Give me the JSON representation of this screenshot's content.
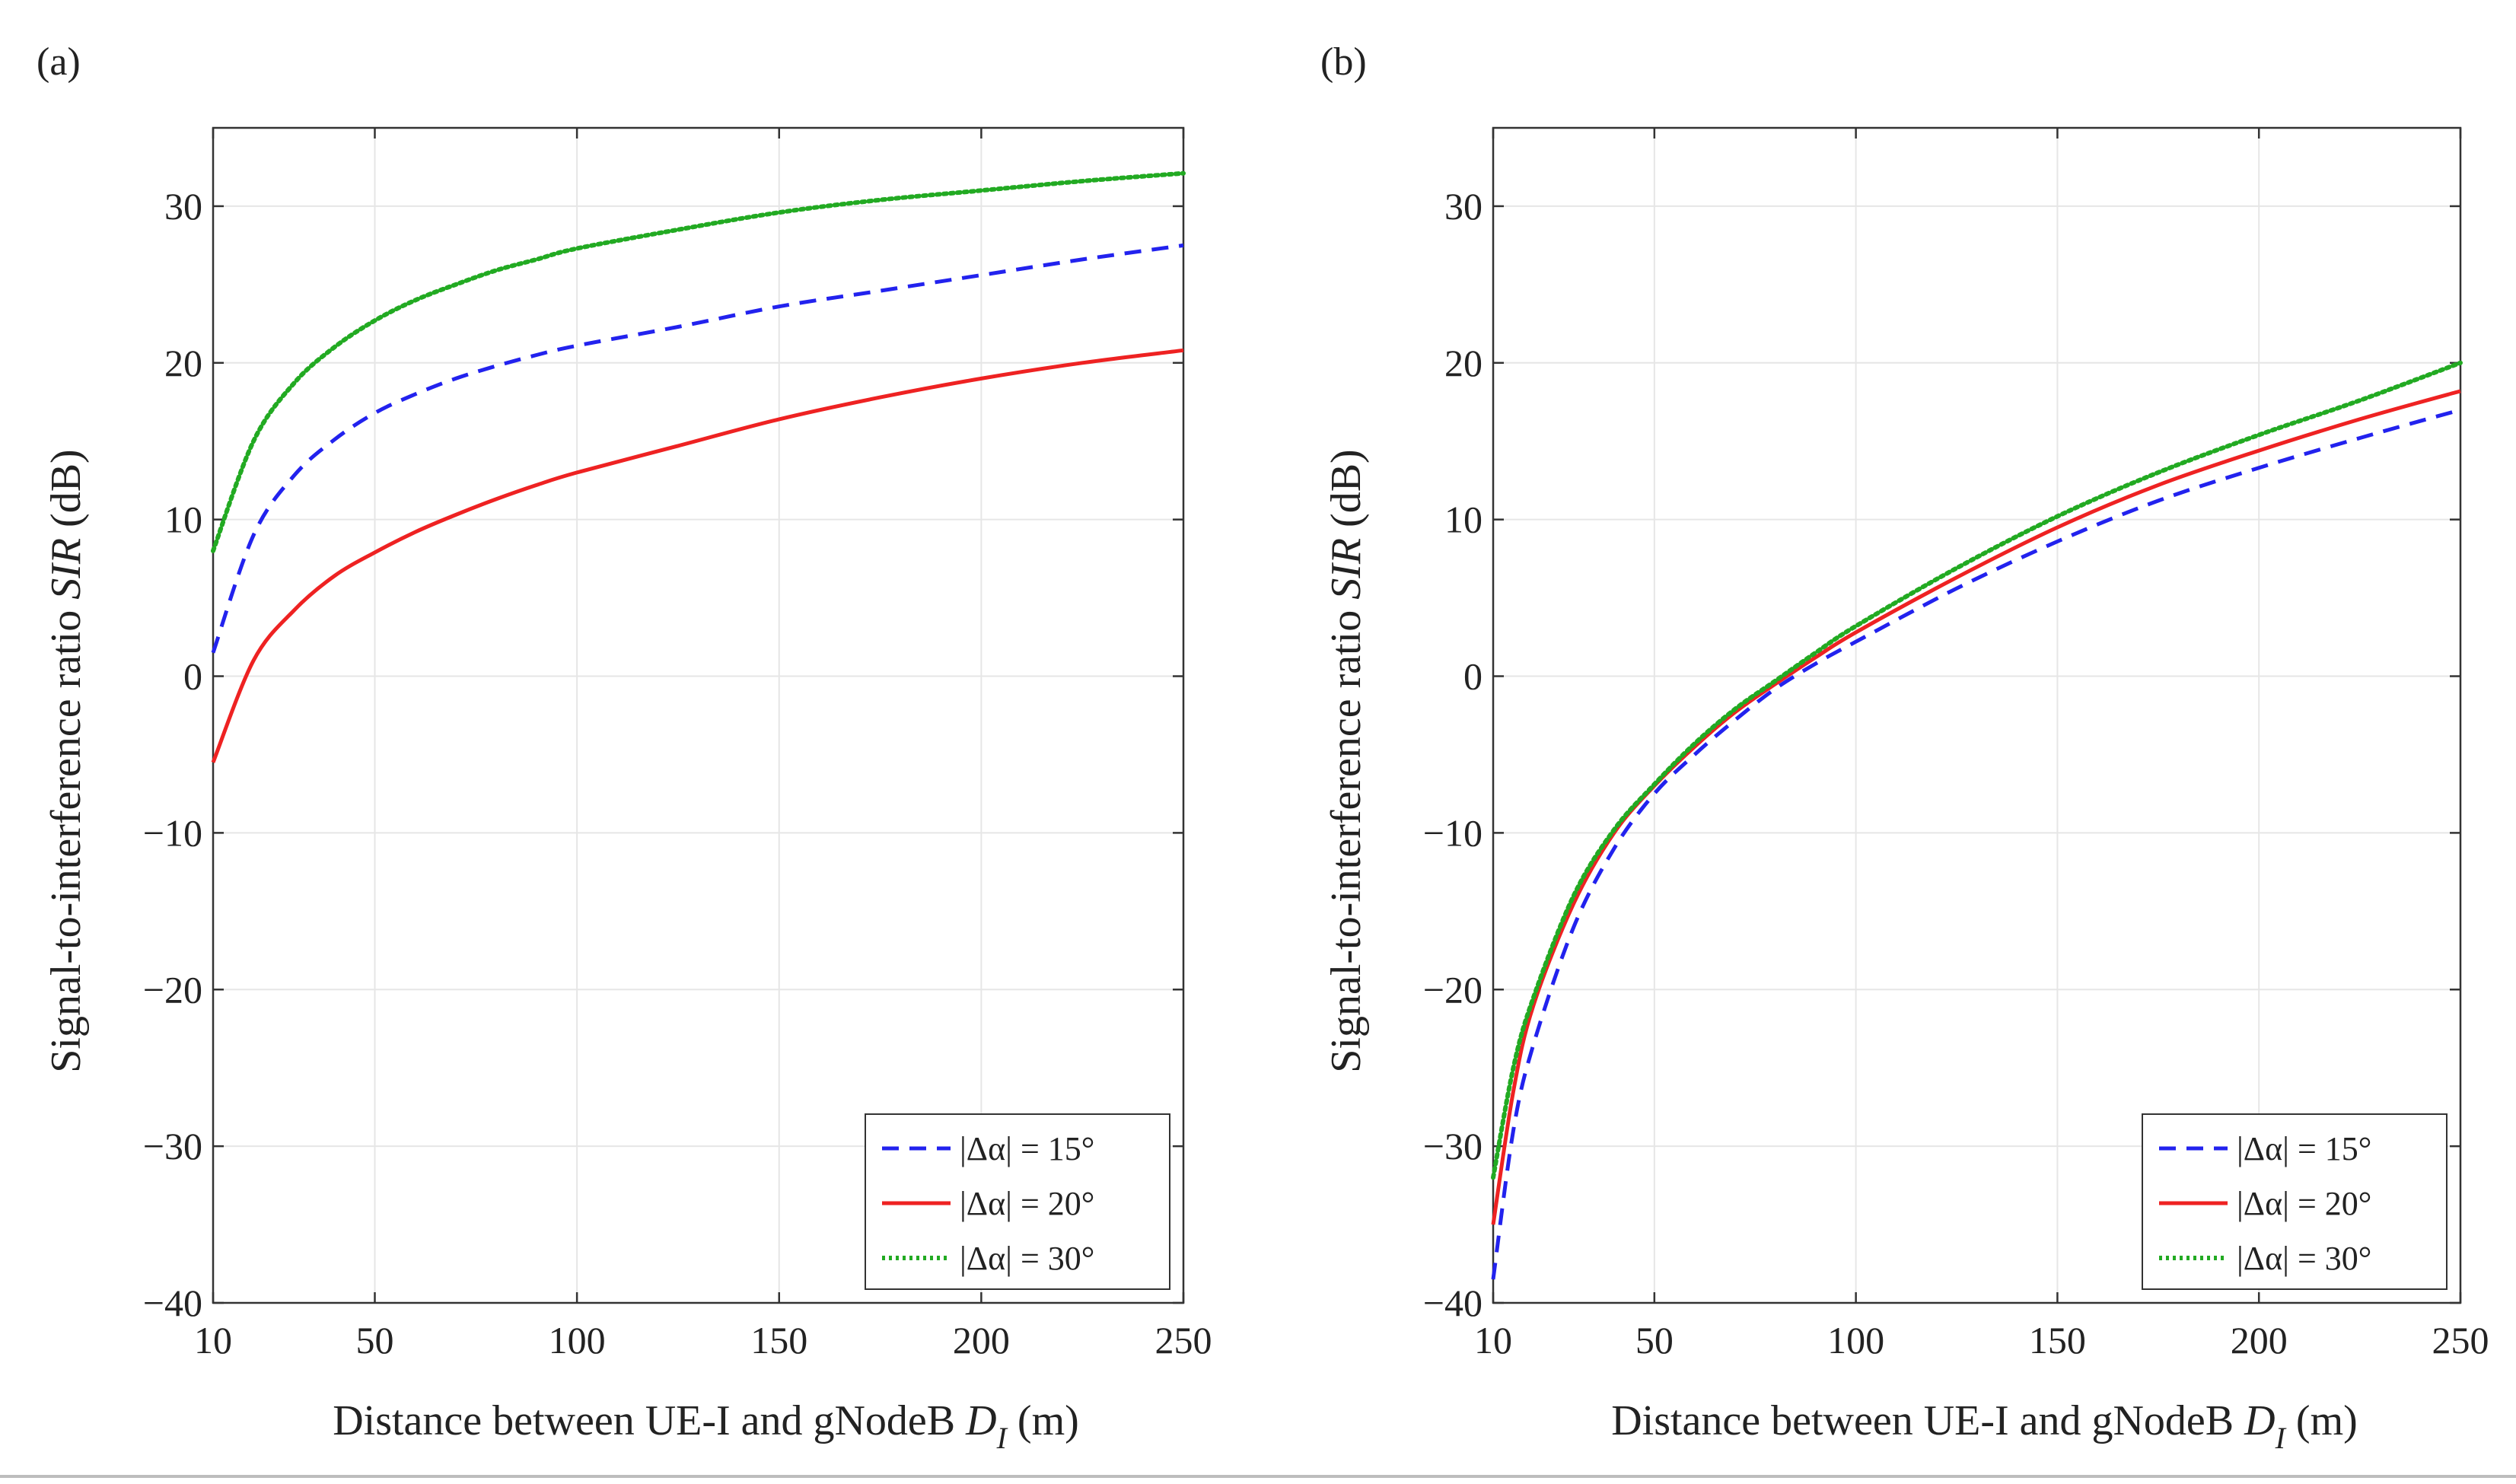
{
  "chart_data": [
    {
      "panel": "(a)",
      "type": "line",
      "xlabel": "Distance between UE-I and gNodeB",
      "xlabel_symbol": "D",
      "xlabel_subscript": "I",
      "xlabel_unit": "(m)",
      "ylabel": "Signal-to-interference ratio",
      "ylabel_symbol": "SIR",
      "ylabel_unit": "(dB)",
      "xlim": [
        10,
        250
      ],
      "ylim": [
        -40,
        35
      ],
      "xticks": [
        10,
        50,
        100,
        150,
        200,
        250
      ],
      "yticks": [
        -40,
        -30,
        -20,
        -10,
        0,
        10,
        20,
        30
      ],
      "ytick_labels": [
        "−40",
        "−30",
        "−20",
        "−10",
        "0",
        "10",
        "20",
        "30"
      ],
      "grid": true,
      "legend_position": "bottom-right",
      "x": [
        10,
        20,
        30,
        40,
        50,
        60,
        70,
        80,
        90,
        100,
        125,
        150,
        175,
        200,
        225,
        250
      ],
      "series": [
        {
          "name": "|Δα| = 15°",
          "style": "dashed",
          "color": "#2222ee",
          "values": [
            1.5,
            9.0,
            12.8,
            15.1,
            16.8,
            18.0,
            19.0,
            19.8,
            20.5,
            21.1,
            22.3,
            23.6,
            24.6,
            25.6,
            26.6,
            27.5
          ]
        },
        {
          "name": "|Δα| = 20°",
          "style": "solid",
          "color": "#ee2222",
          "values": [
            -5.5,
            1.0,
            4.2,
            6.4,
            7.9,
            9.2,
            10.3,
            11.3,
            12.2,
            13.0,
            14.7,
            16.4,
            17.8,
            19.0,
            20.0,
            20.8
          ]
        },
        {
          "name": "|Δα| = 30°",
          "style": "dotted",
          "color": "#22aa22",
          "values": [
            8.0,
            15.0,
            18.7,
            21.0,
            22.7,
            24.0,
            25.0,
            25.9,
            26.6,
            27.3,
            28.5,
            29.6,
            30.4,
            31.0,
            31.6,
            32.1
          ]
        }
      ]
    },
    {
      "panel": "(b)",
      "type": "line",
      "xlabel": "Distance between UE-I and gNodeB",
      "xlabel_symbol": "D",
      "xlabel_subscript": "I",
      "xlabel_unit": "(m)",
      "ylabel": "Signal-to-interference ratio",
      "ylabel_symbol": "SIR",
      "ylabel_unit": "(dB)",
      "xlim": [
        10,
        250
      ],
      "ylim": [
        -40,
        35
      ],
      "xticks": [
        10,
        50,
        100,
        150,
        200,
        250
      ],
      "yticks": [
        -40,
        -30,
        -20,
        -10,
        0,
        10,
        20,
        30
      ],
      "ytick_labels": [
        "−40",
        "−30",
        "−20",
        "−10",
        "0",
        "10",
        "20",
        "30"
      ],
      "grid": true,
      "legend_position": "bottom-right",
      "x": [
        10,
        15,
        20,
        30,
        40,
        50,
        60,
        70,
        80,
        90,
        100,
        125,
        150,
        175,
        200,
        225,
        250
      ],
      "series": [
        {
          "name": "|Δα| = 15°",
          "style": "dashed",
          "color": "#2222ee",
          "values": [
            -38.5,
            -29.0,
            -23.5,
            -16.0,
            -11.0,
            -7.5,
            -5.0,
            -2.8,
            -0.8,
            0.8,
            2.2,
            5.6,
            8.6,
            11.2,
            13.3,
            15.2,
            17.0
          ]
        },
        {
          "name": "|Δα| = 20°",
          "style": "solid",
          "color": "#ee2222",
          "values": [
            -35.0,
            -26.5,
            -21.0,
            -14.5,
            -10.0,
            -7.0,
            -4.5,
            -2.3,
            -0.5,
            1.2,
            2.8,
            6.3,
            9.5,
            12.2,
            14.4,
            16.4,
            18.2
          ]
        },
        {
          "name": "|Δα| = 30°",
          "style": "dotted",
          "color": "#22aa22",
          "values": [
            -32.0,
            -25.0,
            -20.5,
            -14.0,
            -9.8,
            -6.9,
            -4.3,
            -2.1,
            -0.3,
            1.5,
            3.2,
            6.9,
            10.2,
            13.0,
            15.4,
            17.6,
            20.0
          ]
        }
      ]
    }
  ]
}
